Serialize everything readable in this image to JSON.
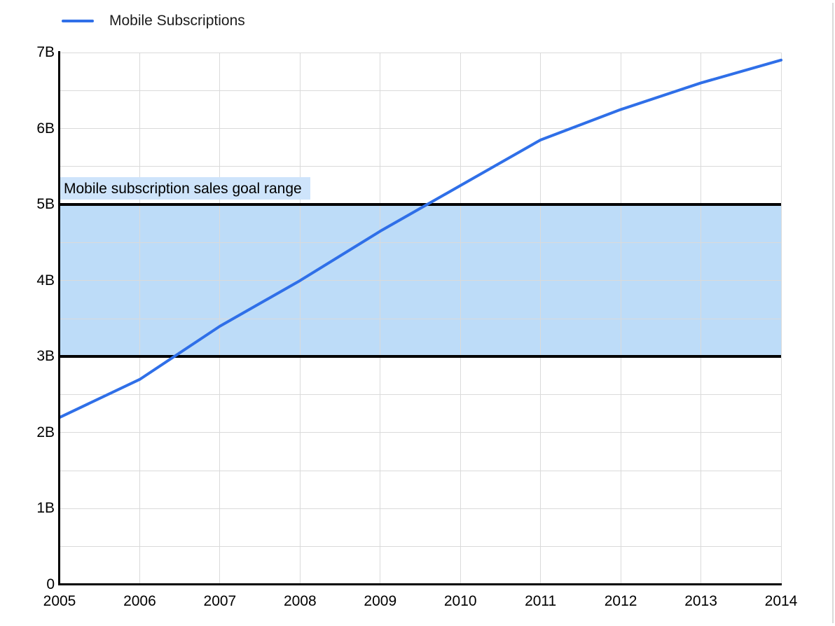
{
  "chart_data": {
    "type": "line",
    "title": "",
    "legend": {
      "position": "top-left",
      "items": [
        {
          "label": "Mobile Subscriptions",
          "color": "#2F6FE8"
        }
      ]
    },
    "categories": [
      "2005",
      "2006",
      "2007",
      "2008",
      "2009",
      "2010",
      "2011",
      "2012",
      "2013",
      "2014"
    ],
    "series": [
      {
        "name": "Mobile Subscriptions",
        "color": "#2F6FE8",
        "values": [
          2.2,
          2.7,
          3.4,
          4.0,
          4.65,
          5.25,
          5.85,
          6.25,
          6.6,
          6.9
        ]
      }
    ],
    "xlabel": "",
    "ylabel": "",
    "ylim": [
      0,
      7
    ],
    "y_ticks": [
      {
        "value": 0,
        "label": "0"
      },
      {
        "value": 1,
        "label": "1B"
      },
      {
        "value": 2,
        "label": "2B"
      },
      {
        "value": 3,
        "label": "3B"
      },
      {
        "value": 4,
        "label": "4B"
      },
      {
        "value": 5,
        "label": "5B"
      },
      {
        "value": 6,
        "label": "6B"
      },
      {
        "value": 7,
        "label": "7B"
      }
    ],
    "minor_gridline_step": 0.5,
    "grid": true,
    "annotation_band": {
      "from": 3,
      "to": 5,
      "label": "Mobile subscription sales goal range",
      "fill": "#BDDCF8",
      "border_color": "#000000",
      "label_bg": "#CEE4FB"
    },
    "colors": {
      "background": "#FFFFFF",
      "gridline": "#DADADA",
      "axis": "#000000",
      "tick_text": "#000000",
      "legend_text": "#1C1C1C",
      "window_edge": "#D9D9D9"
    }
  }
}
